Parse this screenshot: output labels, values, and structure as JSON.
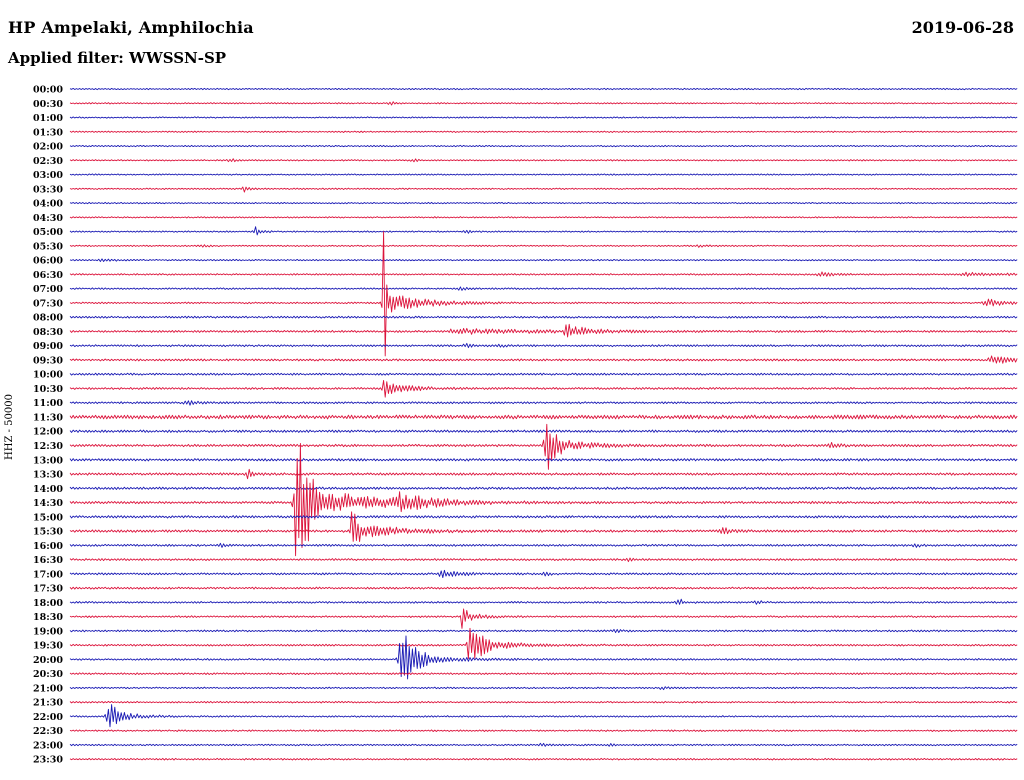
{
  "chart_data": {
    "type": "line",
    "subtype": "helicorder-dayplot",
    "title": "HP Ampelaki, Amphilochia",
    "subtitle": "Applied filter: WWSSN-SP",
    "date": "2019-06-28",
    "ylabel": "HHZ - 50000",
    "row_interval_minutes": 30,
    "x_range_minutes": [
      0,
      30
    ],
    "grid": false,
    "legend": false,
    "colors": {
      "blue": "#1a1ab4",
      "red": "#dc143c"
    },
    "rows": [
      {
        "label": "00:00",
        "color": "blue",
        "noise": 0.7,
        "events": []
      },
      {
        "label": "00:30",
        "color": "red",
        "noise": 0.7,
        "events": [
          {
            "t": 10.1,
            "amp": 2.5,
            "decay": 5
          }
        ]
      },
      {
        "label": "01:00",
        "color": "blue",
        "noise": 0.7,
        "events": []
      },
      {
        "label": "01:30",
        "color": "red",
        "noise": 0.7,
        "events": []
      },
      {
        "label": "02:00",
        "color": "blue",
        "noise": 0.7,
        "events": []
      },
      {
        "label": "02:30",
        "color": "red",
        "noise": 0.7,
        "events": [
          {
            "t": 5.0,
            "amp": 3,
            "decay": 5
          },
          {
            "t": 10.8,
            "amp": 2,
            "decay": 4
          }
        ]
      },
      {
        "label": "03:00",
        "color": "blue",
        "noise": 0.7,
        "events": []
      },
      {
        "label": "03:30",
        "color": "red",
        "noise": 0.7,
        "events": [
          {
            "t": 5.5,
            "amp": 3.5,
            "decay": 4,
            "spike": 4,
            "spikeDur": 3
          }
        ]
      },
      {
        "label": "04:00",
        "color": "blue",
        "noise": 0.7,
        "events": []
      },
      {
        "label": "04:30",
        "color": "red",
        "noise": 0.7,
        "events": []
      },
      {
        "label": "05:00",
        "color": "blue",
        "noise": 0.7,
        "events": [
          {
            "t": 5.85,
            "amp": 3,
            "decay": 8,
            "spike": 7,
            "spikeDur": 3
          },
          {
            "t": 12.5,
            "amp": 2.5,
            "decay": 6
          }
        ]
      },
      {
        "label": "05:30",
        "color": "red",
        "noise": 0.7,
        "events": [
          {
            "t": 4.1,
            "amp": 2,
            "decay": 6
          },
          {
            "t": 19.9,
            "amp": 2.5,
            "decay": 5
          }
        ]
      },
      {
        "label": "06:00",
        "color": "blue",
        "noise": 0.7,
        "events": [
          {
            "t": 0.95,
            "amp": 2,
            "decay": 10
          }
        ]
      },
      {
        "label": "06:30",
        "color": "red",
        "noise": 0.8,
        "events": [
          {
            "t": 23.7,
            "amp": 3,
            "decay": 12
          },
          {
            "t": 28.2,
            "amp": 2.5,
            "decay": 30
          }
        ]
      },
      {
        "label": "07:00",
        "color": "blue",
        "noise": 0.8,
        "events": [
          {
            "t": 12.3,
            "amp": 2,
            "decay": 6
          }
        ]
      },
      {
        "label": "07:30",
        "color": "red",
        "noise": 0.8,
        "events": [
          {
            "t": 9.9,
            "amp": 13,
            "decay": 32,
            "spike": 110,
            "spikeDur": 5
          },
          {
            "t": 28.9,
            "amp": 4,
            "decay": 25
          }
        ]
      },
      {
        "label": "08:00",
        "color": "blue",
        "noise": 1.0,
        "events": []
      },
      {
        "label": "08:30",
        "color": "red",
        "noise": 1.0,
        "events": [
          {
            "t": 12.0,
            "amp": 2.5,
            "decay": 90
          },
          {
            "t": 15.66,
            "amp": 7,
            "decay": 18,
            "spike": 8,
            "spikeDur": 6
          }
        ]
      },
      {
        "label": "09:00",
        "color": "blue",
        "noise": 1.0,
        "events": [
          {
            "t": 12.5,
            "amp": 2.5,
            "decay": 6
          },
          {
            "t": 13.6,
            "amp": 2,
            "decay": 5
          }
        ]
      },
      {
        "label": "09:30",
        "color": "red",
        "noise": 1.0,
        "events": [
          {
            "t": 29.1,
            "amp": 5,
            "decay": 18
          }
        ]
      },
      {
        "label": "10:00",
        "color": "blue",
        "noise": 1.0,
        "events": []
      },
      {
        "label": "10:30",
        "color": "red",
        "noise": 1.0,
        "events": [
          {
            "t": 9.9,
            "amp": 7,
            "decay": 22,
            "spike": 9,
            "spikeDur": 5
          }
        ]
      },
      {
        "label": "11:00",
        "color": "blue",
        "noise": 1.0,
        "events": [
          {
            "t": 3.64,
            "amp": 3,
            "decay": 8
          }
        ]
      },
      {
        "label": "11:30",
        "color": "red",
        "noise": 1.9,
        "events": []
      },
      {
        "label": "12:00",
        "color": "blue",
        "noise": 1.2,
        "events": []
      },
      {
        "label": "12:30",
        "color": "red",
        "noise": 1.2,
        "events": [
          {
            "t": 15.0,
            "amp": 10,
            "decay": 28,
            "spike": 20,
            "spikeDur": 22
          },
          {
            "t": 24.0,
            "amp": 3.5,
            "decay": 8
          }
        ]
      },
      {
        "label": "13:00",
        "color": "blue",
        "noise": 1.2,
        "events": []
      },
      {
        "label": "13:30",
        "color": "red",
        "noise": 1.2,
        "events": [
          {
            "t": 5.6,
            "amp": 5,
            "decay": 5,
            "spike": 6,
            "spikeDur": 3
          }
        ]
      },
      {
        "label": "14:00",
        "color": "blue",
        "noise": 1.2,
        "events": []
      },
      {
        "label": "14:30",
        "color": "red",
        "noise": 1.2,
        "events": [
          {
            "t": 7.1,
            "amp": 20,
            "decay": 55,
            "spike": 74,
            "spikeDur": 26
          },
          {
            "t": 10.3,
            "amp": 8,
            "decay": 30
          }
        ]
      },
      {
        "label": "15:00",
        "color": "blue",
        "noise": 1.2,
        "events": []
      },
      {
        "label": "15:30",
        "color": "red",
        "noise": 1.2,
        "events": [
          {
            "t": 8.9,
            "amp": 10,
            "decay": 35,
            "spike": 27,
            "spikeDur": 10
          },
          {
            "t": 20.6,
            "amp": 4,
            "decay": 8
          }
        ]
      },
      {
        "label": "16:00",
        "color": "blue",
        "noise": 1.0,
        "events": [
          {
            "t": 4.7,
            "amp": 2.5,
            "decay": 6
          },
          {
            "t": 26.7,
            "amp": 2,
            "decay": 6
          }
        ]
      },
      {
        "label": "16:30",
        "color": "red",
        "noise": 1.0,
        "events": [
          {
            "t": 17.6,
            "amp": 2,
            "decay": 5
          }
        ]
      },
      {
        "label": "17:00",
        "color": "blue",
        "noise": 1.0,
        "events": [
          {
            "t": 11.7,
            "amp": 3.5,
            "decay": 18
          },
          {
            "t": 15.0,
            "amp": 2,
            "decay": 5
          }
        ]
      },
      {
        "label": "17:30",
        "color": "red",
        "noise": 1.0,
        "events": []
      },
      {
        "label": "18:00",
        "color": "blue",
        "noise": 0.9,
        "events": [
          {
            "t": 19.2,
            "amp": 5,
            "decay": 6,
            "spike": 6,
            "spikeDur": 3
          },
          {
            "t": 21.7,
            "amp": 2.5,
            "decay": 5
          }
        ]
      },
      {
        "label": "18:30",
        "color": "red",
        "noise": 0.9,
        "events": [
          {
            "t": 12.4,
            "amp": 6,
            "decay": 14,
            "spike": 9,
            "spikeDur": 8
          }
        ]
      },
      {
        "label": "19:00",
        "color": "blue",
        "noise": 0.9,
        "events": [
          {
            "t": 17.2,
            "amp": 2,
            "decay": 5
          }
        ]
      },
      {
        "label": "19:30",
        "color": "red",
        "noise": 0.9,
        "events": [
          {
            "t": 12.6,
            "amp": 9,
            "decay": 30,
            "spike": 14,
            "spikeDur": 25
          }
        ]
      },
      {
        "label": "20:00",
        "color": "blue",
        "noise": 0.9,
        "events": [
          {
            "t": 10.4,
            "amp": 12,
            "decay": 28,
            "spike": 25,
            "spikeDur": 32
          }
        ]
      },
      {
        "label": "20:30",
        "color": "red",
        "noise": 0.9,
        "events": []
      },
      {
        "label": "21:00",
        "color": "blue",
        "noise": 0.8,
        "events": [
          {
            "t": 18.7,
            "amp": 2,
            "decay": 5
          }
        ]
      },
      {
        "label": "21:30",
        "color": "red",
        "noise": 0.8,
        "events": []
      },
      {
        "label": "22:00",
        "color": "blue",
        "noise": 0.8,
        "events": [
          {
            "t": 1.15,
            "amp": 7,
            "decay": 22,
            "spike": 11,
            "spikeDur": 20
          }
        ]
      },
      {
        "label": "22:30",
        "color": "red",
        "noise": 0.8,
        "events": []
      },
      {
        "label": "23:00",
        "color": "blue",
        "noise": 0.8,
        "events": [
          {
            "t": 14.9,
            "amp": 2,
            "decay": 5
          },
          {
            "t": 17.1,
            "amp": 2,
            "decay": 4
          }
        ]
      },
      {
        "label": "23:30",
        "color": "red",
        "noise": 0.8,
        "events": []
      }
    ]
  }
}
